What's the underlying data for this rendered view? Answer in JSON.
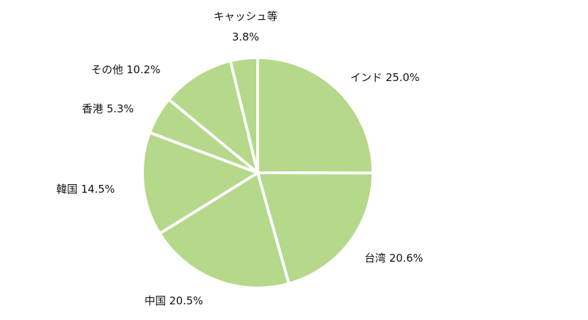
{
  "chart_data": {
    "type": "pie",
    "title": "",
    "legend": "none",
    "slice_color": "#b5d88b",
    "separator_color": "#ffffff",
    "slices": [
      {
        "label": "インド",
        "value": 25.0,
        "display": "インド 25.0%"
      },
      {
        "label": "台湾",
        "value": 20.6,
        "display": "台湾 20.6%"
      },
      {
        "label": "中国",
        "value": 20.5,
        "display": "中国 20.5%"
      },
      {
        "label": "韓国",
        "value": 14.5,
        "display": "韓国 14.5%"
      },
      {
        "label": "香港",
        "value": 5.3,
        "display": "香港 5.3%"
      },
      {
        "label": "その他",
        "value": 10.2,
        "display": "その他 10.2%"
      },
      {
        "label": "キャッシュ等",
        "value": 3.8,
        "display_lines": [
          "キャッシュ等",
          "3.8%"
        ]
      }
    ]
  }
}
